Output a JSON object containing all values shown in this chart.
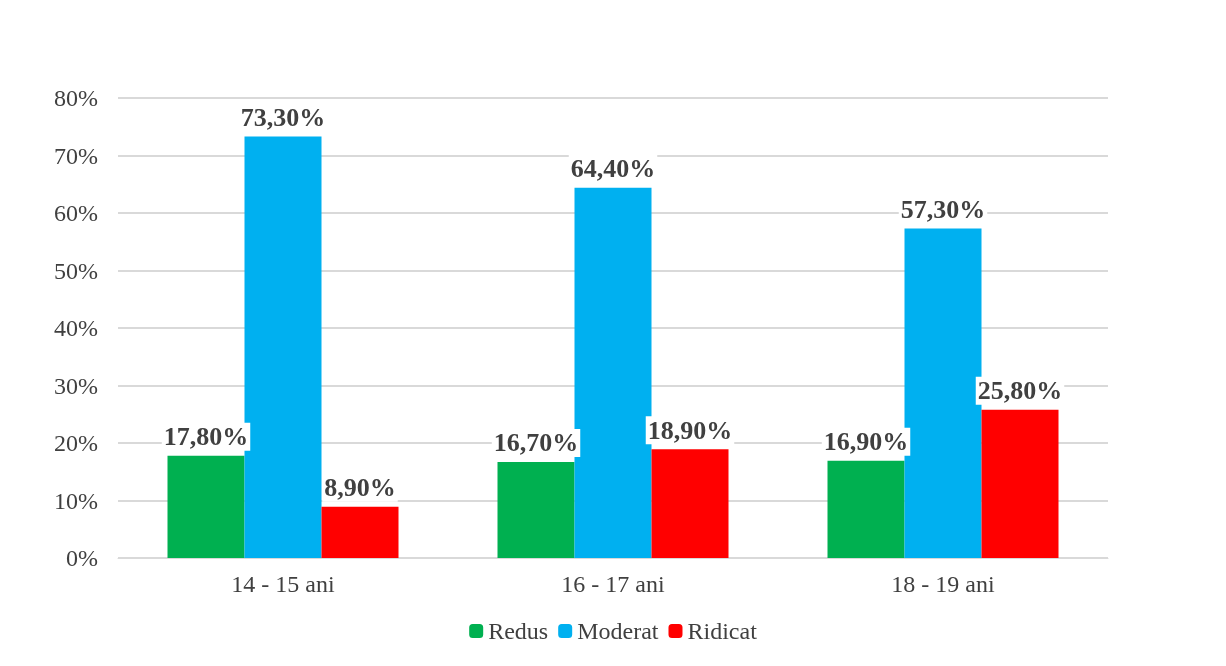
{
  "chart_data": {
    "type": "bar",
    "categories": [
      "14 - 15 ani",
      "16 - 17 ani",
      "18 - 19 ani"
    ],
    "series": [
      {
        "name": "Redus",
        "color": "#00b050",
        "values": [
          17.8,
          16.7,
          16.9
        ],
        "value_labels": [
          "17,80%",
          "16,70%",
          "16,90%"
        ]
      },
      {
        "name": "Moderat",
        "color": "#00b0f0",
        "values": [
          73.3,
          64.4,
          57.3
        ],
        "value_labels": [
          "73,30%",
          "64,40%",
          "57,30%"
        ]
      },
      {
        "name": "Ridicat",
        "color": "#ff0000",
        "values": [
          8.9,
          18.9,
          25.8
        ],
        "value_labels": [
          "8,90%",
          "18,90%",
          "25,80%"
        ]
      }
    ],
    "ylim": [
      0,
      80
    ],
    "yticks": [
      {
        "value": 0,
        "label": "0%"
      },
      {
        "value": 10,
        "label": "10%"
      },
      {
        "value": 20,
        "label": "20%"
      },
      {
        "value": 30,
        "label": "30%"
      },
      {
        "value": 40,
        "label": "40%"
      },
      {
        "value": 50,
        "label": "50%"
      },
      {
        "value": 60,
        "label": "60%"
      },
      {
        "value": 70,
        "label": "70%"
      },
      {
        "value": 80,
        "label": "80%"
      }
    ],
    "grid": "y",
    "legend": "bottom"
  }
}
